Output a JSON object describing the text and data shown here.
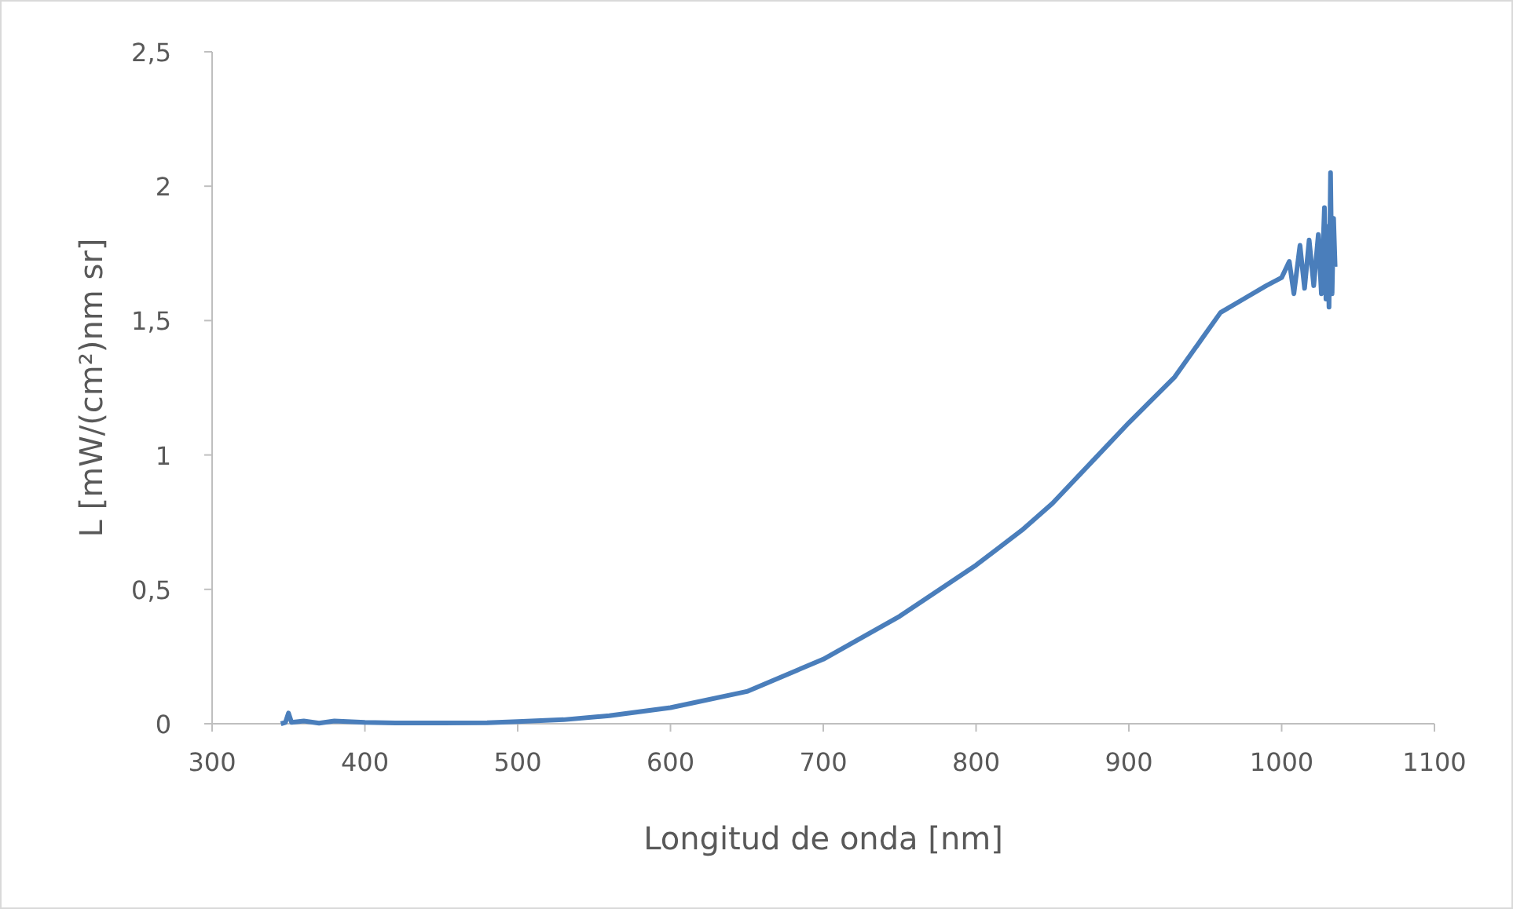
{
  "chart_data": {
    "type": "line",
    "xlabel": "Longitud de onda [nm]",
    "ylabel": "L [mW/(cm²)nm sr]",
    "xlim": [
      300,
      1100
    ],
    "xticks": [
      300,
      400,
      500,
      600,
      700,
      800,
      900,
      1000,
      1100
    ],
    "ylim": [
      0,
      2.5
    ],
    "yticks": [
      0,
      {
        "value": 0.5,
        "label": "0,5"
      },
      1,
      {
        "value": 1.5,
        "label": "1,5"
      },
      2,
      {
        "value": 2.5,
        "label": "2,5"
      }
    ],
    "grid": false,
    "marker": "none",
    "line_style": "solid",
    "series": [
      {
        "color": "#4a7ebb",
        "x": [
          345,
          348,
          350,
          352,
          360,
          370,
          380,
          400,
          420,
          450,
          480,
          500,
          530,
          560,
          600,
          650,
          700,
          750,
          800,
          830,
          850,
          880,
          900,
          930,
          950,
          960,
          975,
          990,
          1000,
          1005,
          1008,
          1012,
          1015,
          1018,
          1021,
          1024,
          1026,
          1028,
          1029,
          1030,
          1031,
          1032,
          1033,
          1034,
          1035
        ],
        "values": [
          0,
          0.005,
          0.04,
          0.005,
          0.01,
          0.002,
          0.01,
          0.005,
          0.003,
          0.003,
          0.004,
          0.008,
          0.015,
          0.03,
          0.06,
          0.12,
          0.24,
          0.4,
          0.59,
          0.72,
          0.82,
          1.0,
          1.12,
          1.29,
          1.45,
          1.53,
          1.58,
          1.63,
          1.66,
          1.72,
          1.6,
          1.78,
          1.62,
          1.8,
          1.63,
          1.82,
          1.6,
          1.92,
          1.58,
          1.85,
          1.55,
          2.05,
          1.6,
          1.88,
          1.7
        ]
      }
    ]
  }
}
